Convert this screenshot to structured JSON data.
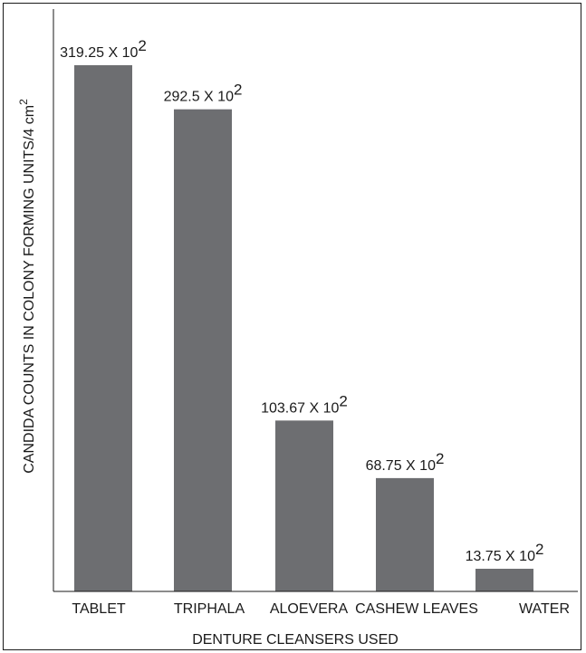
{
  "chart_data": {
    "type": "bar",
    "categories": [
      "TABLET",
      "TRIPHALA",
      "ALOEVERA",
      "CASHEW LEAVES",
      "WATER"
    ],
    "values": [
      319.25,
      292.5,
      103.67,
      68.75,
      13.75
    ],
    "data_labels": [
      {
        "base": "319.25 X 10",
        "sup": "2"
      },
      {
        "base": "292.5 X 10",
        "sup": "2"
      },
      {
        "base": "103.67 X 10",
        "sup": "2"
      },
      {
        "base": "68.75 X 10",
        "sup": "2"
      },
      {
        "base": "13.75 X 10",
        "sup": "2"
      }
    ],
    "title": "",
    "xlabel": "DENTURE CLEANSERS USED",
    "ylabel": {
      "base": "CANDIDA COUNTS IN COLONY FORMING UNITS/4 cm",
      "sup": "2"
    },
    "ylim": [
      0,
      340
    ],
    "grid": false,
    "legend": "none",
    "colors": {
      "bar": "#6d6e71",
      "axis": "#1a1a1a",
      "text": "#1a1a1a"
    }
  }
}
